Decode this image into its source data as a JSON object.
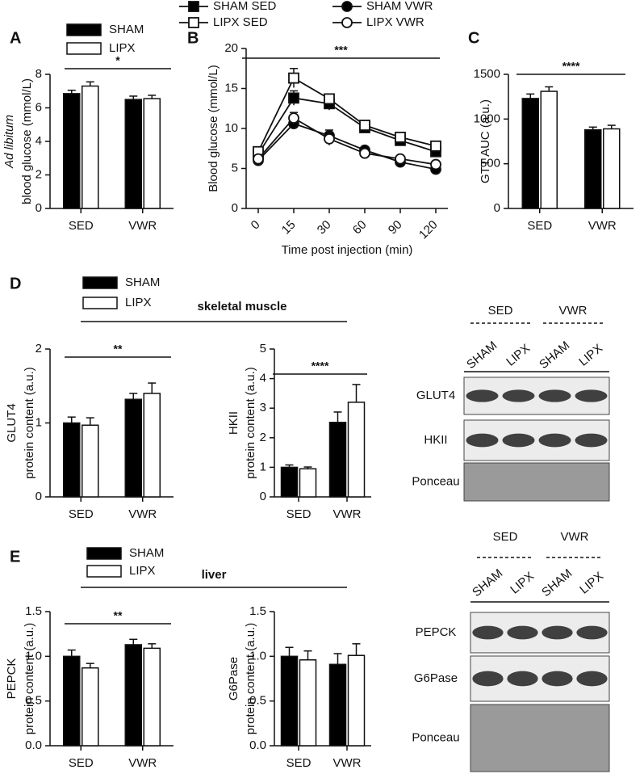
{
  "panels": [
    "A",
    "B",
    "C",
    "D",
    "E"
  ],
  "sections": [
    "skeletal muscle",
    "liver"
  ],
  "blots": [
    {
      "groups": [
        "SED",
        "VWR"
      ],
      "lanes": [
        "SHAM",
        "LIPX",
        "SHAM",
        "LIPX"
      ],
      "rows": [
        "GLUT4",
        "HKII",
        "Ponceau"
      ]
    },
    {
      "groups": [
        "SED",
        "VWR"
      ],
      "lanes": [
        "SHAM",
        "LIPX",
        "SHAM",
        "LIPX"
      ],
      "rows": [
        "PEPCK",
        "G6Pase",
        "Ponceau"
      ]
    }
  ],
  "chart_data": [
    {
      "type": "bar",
      "categories": [
        "SED",
        "VWR"
      ],
      "ylabel": [
        "Ad libitum",
        "blood glucose (mmol/L)"
      ],
      "ylim": [
        0,
        8
      ],
      "yticks": [
        0,
        2,
        4,
        6,
        8
      ],
      "annotation": "*",
      "legend": true,
      "series": [
        {
          "name": "SHAM",
          "color": "#000000",
          "values": [
            6.85,
            6.5
          ],
          "errors": [
            0.2,
            0.2
          ]
        },
        {
          "name": "LIPX",
          "color": "#ffffff",
          "values": [
            7.3,
            6.55
          ],
          "errors": [
            0.25,
            0.2
          ]
        }
      ]
    },
    {
      "type": "line",
      "categories": [
        "0",
        "15",
        "30",
        "60",
        "90",
        "120"
      ],
      "xlabel": "Time post injection (min)",
      "ylabel": [
        "Blood glucose (mmol/L)"
      ],
      "ylim": [
        0,
        20
      ],
      "yticks": [
        0,
        5,
        10,
        15,
        20
      ],
      "annotation": "***",
      "legend": true,
      "series": [
        {
          "name": "SHAM SED",
          "color": "#000000",
          "marker": "square",
          "values": [
            6.8,
            13.8,
            13.1,
            10.1,
            8.5,
            7.1
          ],
          "errors": [
            0.3,
            0.9,
            0.8,
            0.4,
            0.5,
            0.4
          ]
        },
        {
          "name": "LIPX SED",
          "color": "#ffffff",
          "marker": "square",
          "values": [
            7.1,
            16.3,
            13.7,
            10.4,
            8.9,
            7.8
          ],
          "errors": [
            0.3,
            1.2,
            0.6,
            0.4,
            0.5,
            0.4
          ]
        },
        {
          "name": "SHAM VWR",
          "color": "#000000",
          "marker": "circle",
          "values": [
            6.0,
            10.6,
            9.1,
            7.3,
            5.8,
            4.9
          ],
          "errors": [
            0.2,
            0.6,
            0.7,
            0.3,
            0.3,
            0.3
          ]
        },
        {
          "name": "LIPX VWR",
          "color": "#ffffff",
          "marker": "circle",
          "values": [
            6.2,
            11.3,
            8.7,
            6.9,
            6.2,
            5.5
          ],
          "errors": [
            0.2,
            0.7,
            0.8,
            0.4,
            0.3,
            0.3
          ]
        }
      ]
    },
    {
      "type": "bar",
      "categories": [
        "SED",
        "VWR"
      ],
      "ylabel": [
        "GTT AUC (a.u.)"
      ],
      "ylim": [
        0,
        1500
      ],
      "yticks": [
        0,
        500,
        1000,
        1500
      ],
      "annotation": "****",
      "legend": false,
      "series": [
        {
          "name": "SHAM",
          "color": "#000000",
          "values": [
            1230,
            880
          ],
          "errors": [
            50,
            30
          ]
        },
        {
          "name": "LIPX",
          "color": "#ffffff",
          "values": [
            1310,
            890
          ],
          "errors": [
            50,
            40
          ]
        }
      ]
    },
    {
      "type": "bar",
      "categories": [
        "SED",
        "VWR"
      ],
      "ylabel": [
        "GLUT4",
        "protein content (a.u.)"
      ],
      "ylim": [
        0,
        2
      ],
      "yticks": [
        0,
        1,
        2
      ],
      "annotation": "**",
      "legend": true,
      "series": [
        {
          "name": "SHAM",
          "color": "#000000",
          "values": [
            1.0,
            1.32
          ],
          "errors": [
            0.08,
            0.08
          ]
        },
        {
          "name": "LIPX",
          "color": "#ffffff",
          "values": [
            0.97,
            1.4
          ],
          "errors": [
            0.1,
            0.14
          ]
        }
      ]
    },
    {
      "type": "bar",
      "categories": [
        "SED",
        "VWR"
      ],
      "ylabel": [
        "HKII",
        "protein content (a.u.)"
      ],
      "ylim": [
        0,
        5
      ],
      "yticks": [
        0,
        1,
        2,
        3,
        4,
        5
      ],
      "annotation": "****",
      "legend": false,
      "series": [
        {
          "name": "SHAM",
          "color": "#000000",
          "values": [
            1.0,
            2.52
          ],
          "errors": [
            0.08,
            0.35
          ]
        },
        {
          "name": "LIPX",
          "color": "#ffffff",
          "values": [
            0.95,
            3.2
          ],
          "errors": [
            0.06,
            0.6
          ]
        }
      ]
    },
    {
      "type": "bar",
      "categories": [
        "SED",
        "VWR"
      ],
      "ylabel": [
        "PEPCK",
        "protein content (a.u.)"
      ],
      "ylim": [
        0,
        1.5
      ],
      "yticks": [
        {
          "value": 0,
          "label": "0.0"
        },
        {
          "value": 0.5,
          "label": "0.5"
        },
        {
          "value": 1,
          "label": "1.0"
        },
        {
          "value": 1.5,
          "label": "1.5"
        }
      ],
      "annotation": "**",
      "legend": true,
      "series": [
        {
          "name": "SHAM",
          "color": "#000000",
          "values": [
            1.0,
            1.13
          ],
          "errors": [
            0.07,
            0.06
          ]
        },
        {
          "name": "LIPX",
          "color": "#ffffff",
          "values": [
            0.87,
            1.09
          ],
          "errors": [
            0.05,
            0.05
          ]
        }
      ]
    },
    {
      "type": "bar",
      "categories": [
        "SED",
        "VWR"
      ],
      "ylabel": [
        "G6Pase",
        "protein content (a.u.)"
      ],
      "ylim": [
        0,
        1.5
      ],
      "yticks": [
        {
          "value": 0,
          "label": "0.0"
        },
        {
          "value": 0.5,
          "label": "0.5"
        },
        {
          "value": 1,
          "label": "1.0"
        },
        {
          "value": 1.5,
          "label": "1.5"
        }
      ],
      "legend": false,
      "series": [
        {
          "name": "SHAM",
          "color": "#000000",
          "values": [
            1.0,
            0.91
          ],
          "errors": [
            0.1,
            0.12
          ]
        },
        {
          "name": "LIPX",
          "color": "#ffffff",
          "values": [
            0.96,
            1.01
          ],
          "errors": [
            0.1,
            0.13
          ]
        }
      ]
    }
  ]
}
